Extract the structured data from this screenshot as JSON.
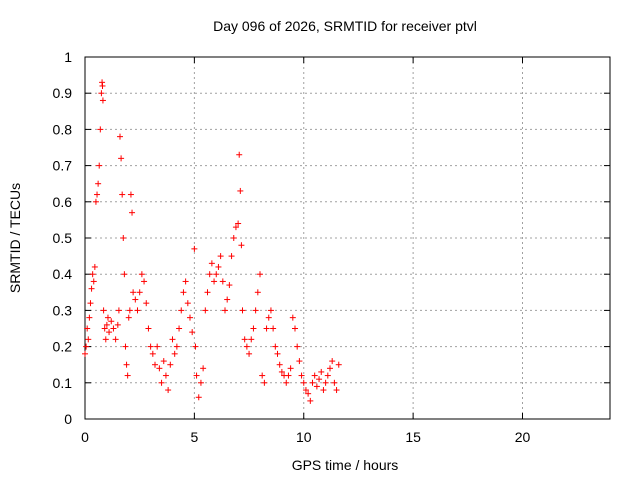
{
  "chart_data": {
    "type": "scatter",
    "title": "Day 096 of 2026, SRMTID for receiver ptvl",
    "xlabel": "GPS time / hours",
    "ylabel": "SRMTID / TECUs",
    "xlim": [
      0,
      24
    ],
    "ylim": [
      0,
      1
    ],
    "x_ticks": [
      0,
      5,
      10,
      15,
      20
    ],
    "y_ticks": [
      0,
      0.1,
      0.2,
      0.3,
      0.4,
      0.5,
      0.6,
      0.7,
      0.8,
      0.9,
      1
    ],
    "x_tick_labels": [
      "0",
      "5",
      "10",
      "15",
      "20"
    ],
    "y_tick_labels": [
      "0",
      "0.1",
      "0.2",
      "0.3",
      "0.4",
      "0.5",
      "0.6",
      "0.7",
      "0.8",
      "0.9",
      "1"
    ],
    "grid": true,
    "marker": "+",
    "marker_color": "#ff0000",
    "series": [
      {
        "name": "SRMTID",
        "points": [
          [
            0.0,
            0.18
          ],
          [
            0.05,
            0.2
          ],
          [
            0.1,
            0.25
          ],
          [
            0.15,
            0.22
          ],
          [
            0.2,
            0.28
          ],
          [
            0.25,
            0.32
          ],
          [
            0.3,
            0.36
          ],
          [
            0.35,
            0.4
          ],
          [
            0.4,
            0.38
          ],
          [
            0.45,
            0.42
          ],
          [
            0.5,
            0.6
          ],
          [
            0.55,
            0.62
          ],
          [
            0.6,
            0.65
          ],
          [
            0.65,
            0.7
          ],
          [
            0.7,
            0.8
          ],
          [
            0.75,
            0.9
          ],
          [
            0.78,
            0.93
          ],
          [
            0.8,
            0.92
          ],
          [
            0.82,
            0.88
          ],
          [
            0.85,
            0.3
          ],
          [
            0.9,
            0.25
          ],
          [
            0.95,
            0.22
          ],
          [
            1.0,
            0.26
          ],
          [
            1.05,
            0.28
          ],
          [
            1.1,
            0.24
          ],
          [
            1.2,
            0.27
          ],
          [
            1.3,
            0.25
          ],
          [
            1.4,
            0.22
          ],
          [
            1.5,
            0.26
          ],
          [
            1.55,
            0.3
          ],
          [
            1.6,
            0.78
          ],
          [
            1.65,
            0.72
          ],
          [
            1.7,
            0.62
          ],
          [
            1.75,
            0.5
          ],
          [
            1.8,
            0.4
          ],
          [
            1.85,
            0.2
          ],
          [
            1.9,
            0.15
          ],
          [
            1.95,
            0.12
          ],
          [
            2.0,
            0.28
          ],
          [
            2.05,
            0.3
          ],
          [
            2.1,
            0.62
          ],
          [
            2.15,
            0.57
          ],
          [
            2.2,
            0.35
          ],
          [
            2.3,
            0.33
          ],
          [
            2.4,
            0.3
          ],
          [
            2.5,
            0.35
          ],
          [
            2.6,
            0.4
          ],
          [
            2.7,
            0.38
          ],
          [
            2.8,
            0.32
          ],
          [
            2.9,
            0.25
          ],
          [
            3.0,
            0.2
          ],
          [
            3.1,
            0.18
          ],
          [
            3.2,
            0.15
          ],
          [
            3.3,
            0.2
          ],
          [
            3.4,
            0.14
          ],
          [
            3.5,
            0.1
          ],
          [
            3.6,
            0.16
          ],
          [
            3.7,
            0.12
          ],
          [
            3.8,
            0.08
          ],
          [
            3.9,
            0.15
          ],
          [
            4.0,
            0.22
          ],
          [
            4.1,
            0.18
          ],
          [
            4.2,
            0.2
          ],
          [
            4.3,
            0.25
          ],
          [
            4.4,
            0.3
          ],
          [
            4.5,
            0.35
          ],
          [
            4.6,
            0.38
          ],
          [
            4.7,
            0.32
          ],
          [
            4.8,
            0.28
          ],
          [
            4.9,
            0.24
          ],
          [
            5.0,
            0.47
          ],
          [
            5.05,
            0.2
          ],
          [
            5.1,
            0.12
          ],
          [
            5.2,
            0.06
          ],
          [
            5.3,
            0.1
          ],
          [
            5.4,
            0.14
          ],
          [
            5.5,
            0.3
          ],
          [
            5.6,
            0.35
          ],
          [
            5.7,
            0.4
          ],
          [
            5.8,
            0.43
          ],
          [
            5.9,
            0.38
          ],
          [
            6.0,
            0.4
          ],
          [
            6.1,
            0.42
          ],
          [
            6.2,
            0.45
          ],
          [
            6.3,
            0.38
          ],
          [
            6.4,
            0.3
          ],
          [
            6.5,
            0.33
          ],
          [
            6.6,
            0.37
          ],
          [
            6.7,
            0.45
          ],
          [
            6.8,
            0.5
          ],
          [
            6.9,
            0.53
          ],
          [
            7.0,
            0.54
          ],
          [
            7.05,
            0.73
          ],
          [
            7.1,
            0.63
          ],
          [
            7.15,
            0.48
          ],
          [
            7.2,
            0.3
          ],
          [
            7.3,
            0.22
          ],
          [
            7.4,
            0.2
          ],
          [
            7.5,
            0.18
          ],
          [
            7.6,
            0.22
          ],
          [
            7.7,
            0.25
          ],
          [
            7.8,
            0.3
          ],
          [
            7.9,
            0.35
          ],
          [
            8.0,
            0.4
          ],
          [
            8.1,
            0.12
          ],
          [
            8.2,
            0.1
          ],
          [
            8.3,
            0.25
          ],
          [
            8.4,
            0.28
          ],
          [
            8.5,
            0.3
          ],
          [
            8.6,
            0.25
          ],
          [
            8.7,
            0.2
          ],
          [
            8.8,
            0.18
          ],
          [
            8.9,
            0.15
          ],
          [
            9.0,
            0.13
          ],
          [
            9.1,
            0.12
          ],
          [
            9.2,
            0.1
          ],
          [
            9.3,
            0.12
          ],
          [
            9.4,
            0.14
          ],
          [
            9.5,
            0.28
          ],
          [
            9.6,
            0.25
          ],
          [
            9.7,
            0.2
          ],
          [
            9.8,
            0.16
          ],
          [
            9.9,
            0.12
          ],
          [
            10.0,
            0.1
          ],
          [
            10.1,
            0.08
          ],
          [
            10.2,
            0.07
          ],
          [
            10.3,
            0.05
          ],
          [
            10.4,
            0.1
          ],
          [
            10.5,
            0.12
          ],
          [
            10.6,
            0.09
          ],
          [
            10.7,
            0.11
          ],
          [
            10.8,
            0.13
          ],
          [
            10.9,
            0.08
          ],
          [
            11.0,
            0.1
          ],
          [
            11.1,
            0.12
          ],
          [
            11.2,
            0.14
          ],
          [
            11.3,
            0.16
          ],
          [
            11.4,
            0.1
          ],
          [
            11.5,
            0.08
          ],
          [
            11.6,
            0.15
          ]
        ]
      }
    ]
  }
}
